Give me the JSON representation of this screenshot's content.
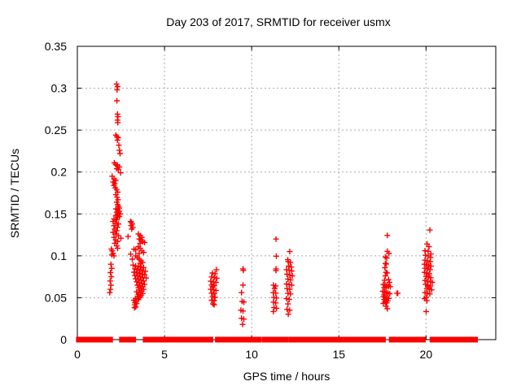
{
  "chart_data": {
    "type": "scatter",
    "title": "Day 203 of 2017, SRMTID for receiver usmx",
    "xlabel": "GPS time / hours",
    "ylabel": "SRMTID / TECUs",
    "xlim": [
      0,
      24
    ],
    "ylim": [
      0,
      0.35
    ],
    "xticks": [
      0,
      5,
      10,
      15,
      20
    ],
    "xtick_labels": [
      "0",
      "5",
      "10",
      "15",
      "20"
    ],
    "yticks": [
      0,
      0.05,
      0.1,
      0.15,
      0.2,
      0.25,
      0.3,
      0.35
    ],
    "ytick_labels": [
      "0",
      "0.05",
      "0.1",
      "0.15",
      "0.2",
      "0.25",
      "0.3",
      "0.35"
    ],
    "grid": true,
    "legend": "none",
    "marker": "plus",
    "marker_color": "#ff0000",
    "grid_color": "#aaaaaa",
    "axis_color": "#000000",
    "zero_line_segments": [
      [
        0.02,
        1.55
      ],
      [
        1.67,
        1.95
      ],
      [
        2.49,
        3.27
      ],
      [
        3.85,
        7.7
      ],
      [
        7.99,
        9.39
      ],
      [
        9.55,
        10.47
      ],
      [
        10.67,
        11.29
      ],
      [
        11.42,
        12.04
      ],
      [
        12.23,
        17.6
      ],
      [
        17.96,
        19.89
      ],
      [
        20.3,
        22.88
      ]
    ],
    "points": [
      [
        2.25,
        0.305
      ],
      [
        2.31,
        0.302
      ],
      [
        2.28,
        0.298
      ],
      [
        2.27,
        0.285
      ],
      [
        2.3,
        0.269
      ],
      [
        2.33,
        0.266
      ],
      [
        2.3,
        0.262
      ],
      [
        2.32,
        0.259
      ],
      [
        2.21,
        0.244
      ],
      [
        2.27,
        0.242
      ],
      [
        2.34,
        0.241
      ],
      [
        2.3,
        0.238
      ],
      [
        2.38,
        0.232
      ],
      [
        2.42,
        0.226
      ],
      [
        2.45,
        0.222
      ],
      [
        2.12,
        0.211
      ],
      [
        2.2,
        0.209
      ],
      [
        2.3,
        0.208
      ],
      [
        2.41,
        0.206
      ],
      [
        2.26,
        0.204
      ],
      [
        2.35,
        0.203
      ],
      [
        2.48,
        0.199
      ],
      [
        2.0,
        0.195
      ],
      [
        2.1,
        0.192
      ],
      [
        2.2,
        0.19
      ],
      [
        2.05,
        0.188
      ],
      [
        2.15,
        0.186
      ],
      [
        2.1,
        0.184
      ],
      [
        2.18,
        0.181
      ],
      [
        2.25,
        0.179
      ],
      [
        2.31,
        0.176
      ],
      [
        2.21,
        0.173
      ],
      [
        2.28,
        0.17
      ],
      [
        2.33,
        0.167
      ],
      [
        2.26,
        0.164
      ],
      [
        2.31,
        0.161
      ],
      [
        2.36,
        0.159
      ],
      [
        2.41,
        0.157
      ],
      [
        2.21,
        0.156
      ],
      [
        2.31,
        0.155
      ],
      [
        2.41,
        0.153
      ],
      [
        2.26,
        0.152
      ],
      [
        2.36,
        0.151
      ],
      [
        2.46,
        0.15
      ],
      [
        2.31,
        0.149
      ],
      [
        2.21,
        0.148
      ],
      [
        2.41,
        0.147
      ],
      [
        2.31,
        0.146
      ],
      [
        2.1,
        0.144
      ],
      [
        2.26,
        0.143
      ],
      [
        2.05,
        0.141
      ],
      [
        2.2,
        0.139
      ],
      [
        2.36,
        0.138
      ],
      [
        2.1,
        0.136
      ],
      [
        2.3,
        0.134
      ],
      [
        2.15,
        0.132
      ],
      [
        2.26,
        0.13
      ],
      [
        2.05,
        0.128
      ],
      [
        2.2,
        0.126
      ],
      [
        2.36,
        0.124
      ],
      [
        2.1,
        0.122
      ],
      [
        2.5,
        0.121
      ],
      [
        2.2,
        0.119
      ],
      [
        2.31,
        0.117
      ],
      [
        2.15,
        0.115
      ],
      [
        2.26,
        0.112
      ],
      [
        2.31,
        0.109
      ],
      [
        1.95,
        0.108
      ],
      [
        2.0,
        0.106
      ],
      [
        2.05,
        0.103
      ],
      [
        1.98,
        0.101
      ],
      [
        2.1,
        0.1
      ],
      [
        1.93,
        0.09
      ],
      [
        1.97,
        0.085
      ],
      [
        1.9,
        0.08
      ],
      [
        1.95,
        0.075
      ],
      [
        1.88,
        0.07
      ],
      [
        1.93,
        0.065
      ],
      [
        1.9,
        0.06
      ],
      [
        1.86,
        0.056
      ],
      [
        3.05,
        0.141
      ],
      [
        3.1,
        0.14
      ],
      [
        3.15,
        0.138
      ],
      [
        3.08,
        0.136
      ],
      [
        3.18,
        0.134
      ],
      [
        3.12,
        0.132
      ],
      [
        2.91,
        0.123
      ],
      [
        3.5,
        0.126
      ],
      [
        3.6,
        0.124
      ],
      [
        3.7,
        0.122
      ],
      [
        3.55,
        0.12
      ],
      [
        3.65,
        0.119
      ],
      [
        3.75,
        0.117
      ],
      [
        3.85,
        0.116
      ],
      [
        3.6,
        0.115
      ],
      [
        3.5,
        0.111
      ],
      [
        3.6,
        0.109
      ],
      [
        3.25,
        0.108
      ],
      [
        3.35,
        0.107
      ],
      [
        3.7,
        0.106
      ],
      [
        3.8,
        0.104
      ],
      [
        3.55,
        0.103
      ],
      [
        3.06,
        0.102
      ],
      [
        3.35,
        0.1
      ],
      [
        3.45,
        0.098
      ],
      [
        3.15,
        0.096
      ],
      [
        3.55,
        0.096
      ],
      [
        3.65,
        0.094
      ],
      [
        3.75,
        0.092
      ],
      [
        3.6,
        0.091
      ],
      [
        3.2,
        0.089
      ],
      [
        3.35,
        0.088
      ],
      [
        3.5,
        0.0875
      ],
      [
        3.65,
        0.087
      ],
      [
        3.8,
        0.086
      ],
      [
        3.3,
        0.0845
      ],
      [
        3.45,
        0.084
      ],
      [
        3.6,
        0.083
      ],
      [
        3.75,
        0.082
      ],
      [
        3.9,
        0.0815
      ],
      [
        3.25,
        0.0805
      ],
      [
        3.4,
        0.08
      ],
      [
        3.55,
        0.079
      ],
      [
        3.7,
        0.078
      ],
      [
        3.85,
        0.0775
      ],
      [
        3.3,
        0.0765
      ],
      [
        3.45,
        0.076
      ],
      [
        3.6,
        0.075
      ],
      [
        3.75,
        0.074
      ],
      [
        3.95,
        0.0735
      ],
      [
        3.35,
        0.0725
      ],
      [
        3.5,
        0.072
      ],
      [
        3.65,
        0.071
      ],
      [
        3.8,
        0.07
      ],
      [
        3.4,
        0.069
      ],
      [
        3.55,
        0.068
      ],
      [
        3.7,
        0.067
      ],
      [
        3.85,
        0.066
      ],
      [
        3.45,
        0.065
      ],
      [
        3.6,
        0.064
      ],
      [
        3.75,
        0.063
      ],
      [
        3.5,
        0.062
      ],
      [
        3.65,
        0.061
      ],
      [
        3.8,
        0.06
      ],
      [
        3.55,
        0.059
      ],
      [
        3.7,
        0.058
      ],
      [
        3.4,
        0.057
      ],
      [
        3.6,
        0.056
      ],
      [
        3.75,
        0.055
      ],
      [
        3.5,
        0.054
      ],
      [
        3.65,
        0.053
      ],
      [
        3.45,
        0.052
      ],
      [
        3.6,
        0.051
      ],
      [
        3.55,
        0.05
      ],
      [
        3.35,
        0.049
      ],
      [
        3.5,
        0.048
      ],
      [
        3.25,
        0.047
      ],
      [
        3.35,
        0.046
      ],
      [
        3.3,
        0.044
      ],
      [
        3.4,
        0.043
      ],
      [
        3.3,
        0.0415
      ],
      [
        3.35,
        0.039
      ],
      [
        3.28,
        0.038
      ],
      [
        7.98,
        0.0835
      ],
      [
        7.75,
        0.0795
      ],
      [
        7.9,
        0.0786
      ],
      [
        7.7,
        0.0748
      ],
      [
        7.85,
        0.074
      ],
      [
        8.0,
        0.0732
      ],
      [
        7.65,
        0.0697
      ],
      [
        7.8,
        0.0689
      ],
      [
        7.95,
        0.0684
      ],
      [
        7.7,
        0.0652
      ],
      [
        7.85,
        0.0645
      ],
      [
        7.75,
        0.0632
      ],
      [
        7.65,
        0.06
      ],
      [
        7.8,
        0.0595
      ],
      [
        7.95,
        0.0588
      ],
      [
        7.7,
        0.0555
      ],
      [
        7.85,
        0.0548
      ],
      [
        7.75,
        0.0513
      ],
      [
        7.9,
        0.0505
      ],
      [
        7.7,
        0.047
      ],
      [
        7.85,
        0.0465
      ],
      [
        7.78,
        0.0427
      ],
      [
        7.85,
        0.0417
      ],
      [
        9.5,
        0.0844
      ],
      [
        9.52,
        0.0826
      ],
      [
        9.5,
        0.0651
      ],
      [
        9.42,
        0.0561
      ],
      [
        9.45,
        0.0457
      ],
      [
        9.55,
        0.0448
      ],
      [
        9.38,
        0.0351
      ],
      [
        9.5,
        0.0341
      ],
      [
        9.42,
        0.0254
      ],
      [
        9.55,
        0.0245
      ],
      [
        9.48,
        0.0181
      ],
      [
        11.4,
        0.12
      ],
      [
        11.41,
        0.0996
      ],
      [
        11.4,
        0.0844
      ],
      [
        11.39,
        0.0825
      ],
      [
        11.25,
        0.0651
      ],
      [
        11.38,
        0.0641
      ],
      [
        11.32,
        0.0609
      ],
      [
        11.24,
        0.056
      ],
      [
        11.38,
        0.0555
      ],
      [
        11.27,
        0.0503
      ],
      [
        11.42,
        0.0496
      ],
      [
        11.25,
        0.0448
      ],
      [
        11.38,
        0.0438
      ],
      [
        11.28,
        0.0384
      ],
      [
        11.42,
        0.0374
      ],
      [
        11.25,
        0.0335
      ],
      [
        12.18,
        0.1051
      ],
      [
        12.07,
        0.0954
      ],
      [
        12.1,
        0.0931
      ],
      [
        12.22,
        0.0922
      ],
      [
        12.12,
        0.0877
      ],
      [
        12.27,
        0.0867
      ],
      [
        12.0,
        0.0835
      ],
      [
        12.15,
        0.0827
      ],
      [
        12.3,
        0.0819
      ],
      [
        12.03,
        0.078
      ],
      [
        12.18,
        0.077
      ],
      [
        12.33,
        0.0761
      ],
      [
        12.08,
        0.0722
      ],
      [
        12.23,
        0.0713
      ],
      [
        12.0,
        0.0664
      ],
      [
        12.15,
        0.0657
      ],
      [
        12.3,
        0.0651
      ],
      [
        12.03,
        0.0609
      ],
      [
        12.18,
        0.06
      ],
      [
        12.08,
        0.0554
      ],
      [
        12.23,
        0.0545
      ],
      [
        12.0,
        0.049
      ],
      [
        12.15,
        0.048
      ],
      [
        12.08,
        0.0426
      ],
      [
        12.03,
        0.0361
      ],
      [
        12.18,
        0.0351
      ],
      [
        12.1,
        0.0303
      ],
      [
        17.78,
        0.1244
      ],
      [
        17.78,
        0.1054
      ],
      [
        17.87,
        0.1028
      ],
      [
        17.67,
        0.0986
      ],
      [
        17.75,
        0.0974
      ],
      [
        17.67,
        0.0909
      ],
      [
        17.72,
        0.0903
      ],
      [
        17.64,
        0.0858
      ],
      [
        17.7,
        0.0803
      ],
      [
        17.77,
        0.0796
      ],
      [
        17.67,
        0.0761
      ],
      [
        17.85,
        0.0716
      ],
      [
        17.62,
        0.0709
      ],
      [
        17.9,
        0.0684
      ],
      [
        17.55,
        0.0658
      ],
      [
        17.65,
        0.0652
      ],
      [
        17.75,
        0.0645
      ],
      [
        17.85,
        0.0638
      ],
      [
        17.95,
        0.0631
      ],
      [
        17.6,
        0.0622
      ],
      [
        17.7,
        0.0615
      ],
      [
        17.52,
        0.0577
      ],
      [
        17.62,
        0.057
      ],
      [
        17.72,
        0.0563
      ],
      [
        17.82,
        0.0556
      ],
      [
        17.92,
        0.0548
      ],
      [
        17.6,
        0.0535
      ],
      [
        17.55,
        0.0513
      ],
      [
        17.65,
        0.0506
      ],
      [
        17.75,
        0.0499
      ],
      [
        17.85,
        0.0492
      ],
      [
        17.6,
        0.0478
      ],
      [
        17.7,
        0.047
      ],
      [
        17.8,
        0.0462
      ],
      [
        17.65,
        0.0448
      ],
      [
        17.75,
        0.044
      ],
      [
        17.55,
        0.0432
      ],
      [
        17.7,
        0.0399
      ],
      [
        17.78,
        0.0368
      ],
      [
        18.33,
        0.0554
      ],
      [
        18.38,
        0.0554
      ],
      [
        20.22,
        0.1308
      ],
      [
        20.06,
        0.1141
      ],
      [
        20.17,
        0.1109
      ],
      [
        19.94,
        0.1061
      ],
      [
        20.12,
        0.1054
      ],
      [
        20.28,
        0.1022
      ],
      [
        19.97,
        0.1006
      ],
      [
        20.12,
        0.0999
      ],
      [
        20.26,
        0.098
      ],
      [
        19.94,
        0.0948
      ],
      [
        20.08,
        0.094
      ],
      [
        20.23,
        0.0931
      ],
      [
        19.91,
        0.09
      ],
      [
        20.03,
        0.0893
      ],
      [
        20.15,
        0.0885
      ],
      [
        20.28,
        0.0877
      ],
      [
        19.94,
        0.0851
      ],
      [
        20.08,
        0.0843
      ],
      [
        20.23,
        0.0835
      ],
      [
        19.91,
        0.0803
      ],
      [
        20.05,
        0.0795
      ],
      [
        20.19,
        0.0786
      ],
      [
        20.0,
        0.0754
      ],
      [
        20.14,
        0.0746
      ],
      [
        20.28,
        0.0738
      ],
      [
        19.94,
        0.0706
      ],
      [
        20.08,
        0.0698
      ],
      [
        20.25,
        0.069
      ],
      [
        20.36,
        0.0684
      ],
      [
        19.97,
        0.0658
      ],
      [
        20.11,
        0.065
      ],
      [
        20.25,
        0.0641
      ],
      [
        20.04,
        0.0609
      ],
      [
        20.18,
        0.0601
      ],
      [
        20.32,
        0.0593
      ],
      [
        19.94,
        0.0561
      ],
      [
        20.08,
        0.0553
      ],
      [
        20.22,
        0.0545
      ],
      [
        20.01,
        0.0503
      ],
      [
        19.91,
        0.049
      ],
      [
        20.05,
        0.0464
      ],
      [
        20.01,
        0.0335
      ]
    ]
  }
}
